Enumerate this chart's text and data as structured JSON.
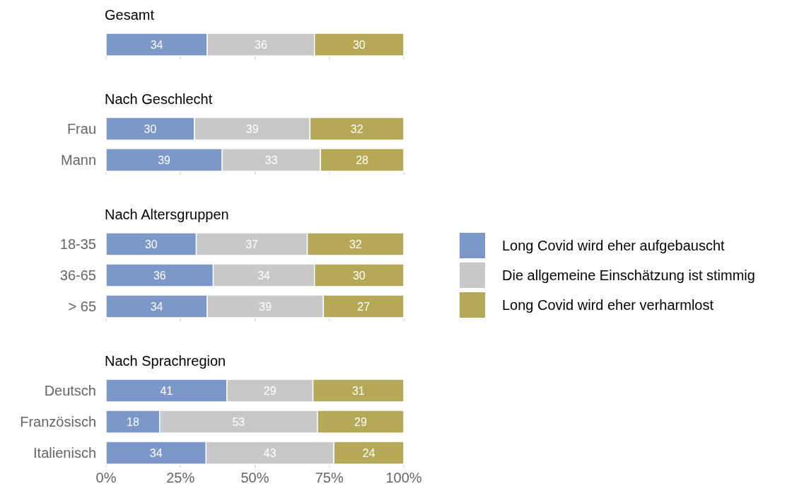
{
  "chart_data": [
    {
      "type": "bar",
      "orientation": "horizontal",
      "stacked": true,
      "title": "Gesamt",
      "categories": [
        null
      ],
      "tick_labels": "y",
      "xlim": [
        0,
        100
      ],
      "xticks": [
        {
          "value": 0,
          "label": null
        },
        {
          "value": 25,
          "label": null
        },
        {
          "value": 50,
          "label": null
        },
        {
          "value": 75,
          "label": null
        },
        {
          "value": 100,
          "label": null
        }
      ],
      "series": [
        {
          "color": "#7b98c9",
          "values": [
            34
          ],
          "value_labels": [
            "34"
          ]
        },
        {
          "color": "#c8c8c8",
          "values": [
            36
          ],
          "value_labels": [
            "36"
          ]
        },
        {
          "color": "#b5a957",
          "values": [
            30
          ],
          "value_labels": [
            "30"
          ]
        }
      ]
    },
    {
      "type": "bar",
      "orientation": "horizontal",
      "stacked": true,
      "title": "Nach Geschlecht",
      "categories": [
        "Frau",
        "Mann"
      ],
      "tick_labels": "y",
      "xlim": [
        0,
        100
      ],
      "xticks": [
        {
          "value": 0,
          "label": null
        },
        {
          "value": 25,
          "label": null
        },
        {
          "value": 50,
          "label": null
        },
        {
          "value": 75,
          "label": null
        },
        {
          "value": 100,
          "label": null
        }
      ],
      "series": [
        {
          "color": "#7b98c9",
          "values": [
            29.7,
            39
          ],
          "value_labels": [
            "30",
            "39"
          ]
        },
        {
          "color": "#c8c8c8",
          "values": [
            38.8,
            33
          ],
          "value_labels": [
            "39",
            "33"
          ]
        },
        {
          "color": "#b5a957",
          "values": [
            31.5,
            28
          ],
          "value_labels": [
            "32",
            "28"
          ]
        }
      ]
    },
    {
      "type": "bar",
      "orientation": "horizontal",
      "stacked": true,
      "title": "Nach Altersgruppen",
      "categories": [
        "18-35",
        "36-65",
        "> 65"
      ],
      "tick_labels": "y",
      "legend": "right",
      "xlim": [
        0,
        100
      ],
      "xticks": [
        {
          "value": 0,
          "label": null
        },
        {
          "value": 25,
          "label": null
        },
        {
          "value": 50,
          "label": null
        },
        {
          "value": 75,
          "label": null
        },
        {
          "value": 100,
          "label": null
        }
      ],
      "series": [
        {
          "name": "Long Covid wird eher aufgebauscht",
          "color": "#7b98c9",
          "values": [
            30.3,
            36,
            34
          ],
          "value_labels": [
            "30",
            "36",
            "34"
          ]
        },
        {
          "name": "Die allgemeine Einschätzung ist stimmig",
          "color": "#c8c8c8",
          "values": [
            37.3,
            34,
            39
          ],
          "value_labels": [
            "37",
            "34",
            "39"
          ]
        },
        {
          "name": "Long Covid wird eher verharmlost",
          "color": "#b5a957",
          "values": [
            32.4,
            30,
            27
          ],
          "value_labels": [
            "32",
            "30",
            "27"
          ]
        }
      ]
    },
    {
      "type": "bar",
      "orientation": "horizontal",
      "stacked": true,
      "title": "Nach Sprachregion",
      "categories": [
        "Deutsch",
        "Französisch",
        "Italienisch"
      ],
      "xlim": [
        0,
        100
      ],
      "xticks": [
        {
          "value": 0,
          "label": "0%"
        },
        {
          "value": 25,
          "label": "25%"
        },
        {
          "value": 50,
          "label": "50%"
        },
        {
          "value": 75,
          "label": "75%"
        },
        {
          "value": 100,
          "label": "100%"
        }
      ],
      "series": [
        {
          "color": "#7b98c9",
          "values": [
            40.6,
            18,
            33.6
          ],
          "value_labels": [
            "41",
            "18",
            "34"
          ]
        },
        {
          "color": "#c8c8c8",
          "values": [
            28.9,
            53,
            42.9
          ],
          "value_labels": [
            "29",
            "53",
            "43"
          ]
        },
        {
          "color": "#b5a957",
          "values": [
            30.5,
            29,
            23.5
          ],
          "value_labels": [
            "31",
            "29",
            "24"
          ]
        }
      ]
    }
  ]
}
